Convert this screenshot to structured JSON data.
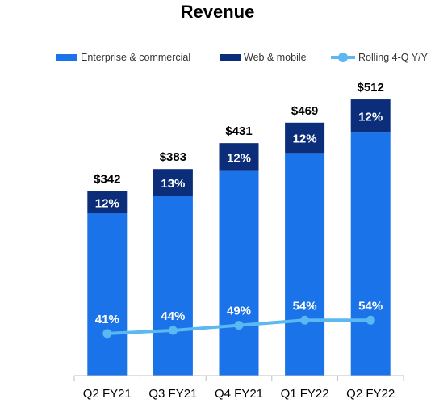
{
  "chart_data": {
    "type": "bar",
    "title": "Revenue",
    "categories": [
      "Q2 FY21",
      "Q3 FY21",
      "Q4 FY21",
      "Q1 FY22",
      "Q2 FY22"
    ],
    "totals": [
      342,
      383,
      431,
      469,
      512
    ],
    "total_labels": [
      "$342",
      "$383",
      "$431",
      "$469",
      "$512"
    ],
    "series": [
      {
        "name": "Enterprise & commercial",
        "color": "#1a73e8",
        "values": [
          300.96,
          333.21,
          379.28,
          412.72,
          450.56
        ]
      },
      {
        "name": "Web & mobile",
        "color": "#0b2d7a",
        "values": [
          41.04,
          49.79,
          51.72,
          56.28,
          61.44
        ],
        "labels": [
          "12%",
          "13%",
          "12%",
          "12%",
          "12%"
        ]
      },
      {
        "name": "Rolling 4-Q Y/Y",
        "type": "line",
        "color": "#5bb8f0",
        "values": [
          41,
          44,
          49,
          54,
          54
        ],
        "labels": [
          "41%",
          "44%",
          "49%",
          "54%",
          "54%"
        ]
      }
    ],
    "ylim": [
      0,
      560
    ],
    "line_ylim": [
      0,
      110
    ],
    "legend_position": "top",
    "grid": false,
    "xlabel": "",
    "ylabel": ""
  }
}
